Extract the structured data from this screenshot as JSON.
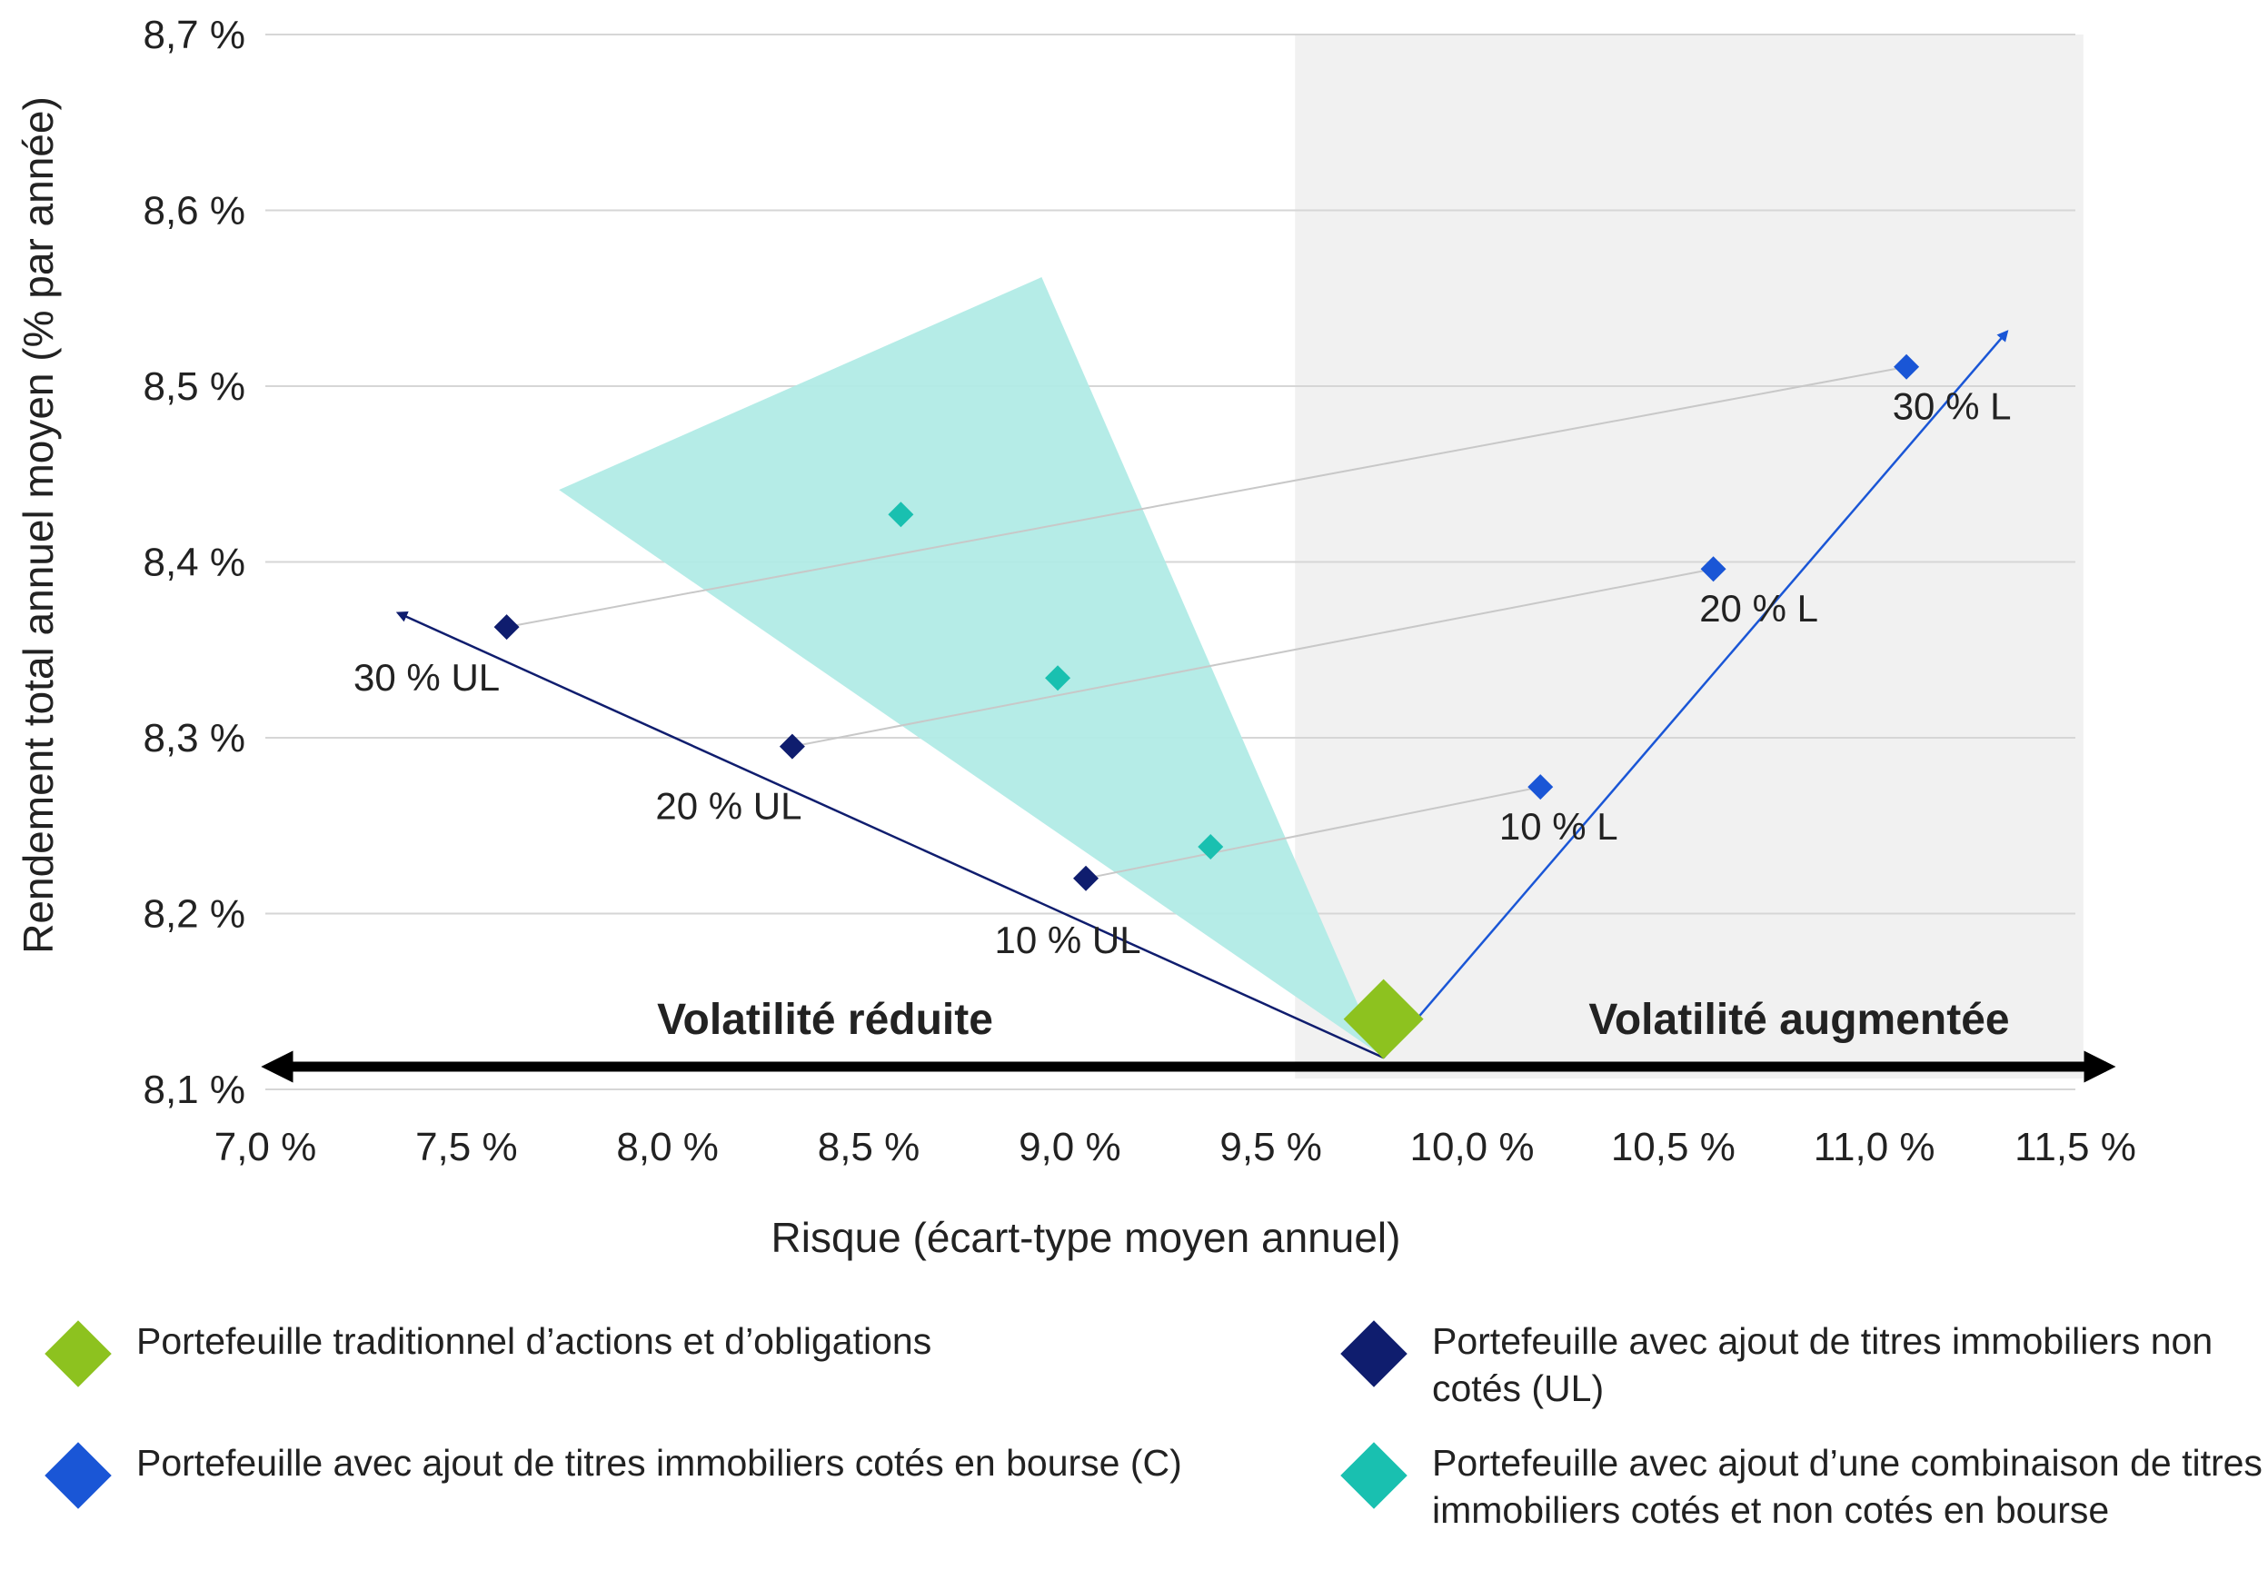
{
  "chart_data": {
    "type": "scatter",
    "xlabel": "Risque (écart-type moyen annuel)",
    "ylabel": "Rendement total annuel moyen (% par année)",
    "xlim": [
      7.0,
      11.5
    ],
    "ylim": [
      8.1,
      8.7
    ],
    "x_ticks": [
      7.0,
      7.5,
      8.0,
      8.5,
      9.0,
      9.5,
      10.0,
      10.5,
      11.0,
      11.5
    ],
    "x_tick_labels": [
      "7,0 %",
      "7,5 %",
      "8,0 %",
      "8,5 %",
      "9,0 %",
      "9,5 %",
      "10,0 %",
      "10,5 %",
      "11,0 %",
      "11,5 %"
    ],
    "y_ticks": [
      8.1,
      8.2,
      8.3,
      8.4,
      8.5,
      8.6,
      8.7
    ],
    "y_tick_labels": [
      "8,1 %",
      "8,2 %",
      "8,3 %",
      "8,4 %",
      "8,5 %",
      "8,6 %",
      "8,7 %"
    ],
    "grid": true,
    "shaded_region": {
      "x_from": 9.56,
      "x_to": 11.52,
      "color": "#f1f1f1"
    },
    "zone_labels": {
      "left": "Volatilité réduite",
      "right": "Volatilité augmentée"
    },
    "series": [
      {
        "name": "Portefeuille traditionnel d’actions et d’obligations",
        "color": "#8dc21f",
        "size": "large",
        "points": [
          {
            "x": 9.78,
            "y": 8.14,
            "label": ""
          }
        ]
      },
      {
        "name": "Portefeuille avec ajout de titres immobiliers non cotés (UL)",
        "color": "#0f1d6e",
        "size": "small",
        "points": [
          {
            "x": 9.04,
            "y": 8.22,
            "label": "10 % UL"
          },
          {
            "x": 8.31,
            "y": 8.295,
            "label": "20 % UL"
          },
          {
            "x": 7.6,
            "y": 8.363,
            "label": "30 % UL"
          }
        ]
      },
      {
        "name": "Portefeuille avec ajout de titres immobiliers cotés en bourse (C)",
        "color": "#1a56d6",
        "size": "small",
        "points": [
          {
            "x": 10.17,
            "y": 8.272,
            "label": "10 % L"
          },
          {
            "x": 10.6,
            "y": 8.396,
            "label": "20 % L"
          },
          {
            "x": 11.08,
            "y": 8.511,
            "label": "30 % L"
          }
        ]
      },
      {
        "name": "Portefeuille avec ajout d’une combinaison de titres immobiliers cotés et non cotés en bourse",
        "color": "#19c0b0",
        "size": "small",
        "points": [
          {
            "x": 9.35,
            "y": 8.238,
            "label": ""
          },
          {
            "x": 8.97,
            "y": 8.334,
            "label": ""
          },
          {
            "x": 8.58,
            "y": 8.427,
            "label": ""
          }
        ]
      }
    ],
    "triangle": {
      "color": "#b1ebe6",
      "vertices": [
        [
          9.77,
          8.12
        ],
        [
          7.73,
          8.441
        ],
        [
          8.93,
          8.562
        ]
      ]
    },
    "connectors": [
      {
        "from": [
          9.04,
          8.22
        ],
        "to": [
          10.17,
          8.272
        ]
      },
      {
        "from": [
          8.31,
          8.295
        ],
        "to": [
          10.6,
          8.396
        ]
      },
      {
        "from": [
          7.6,
          8.363
        ],
        "to": [
          11.08,
          8.511
        ]
      }
    ],
    "arrows": [
      {
        "from": [
          9.78,
          8.118
        ],
        "to": [
          7.33,
          8.371
        ],
        "color": "#0f1d6e"
      },
      {
        "from": [
          9.78,
          8.118
        ],
        "to": [
          11.33,
          8.531
        ],
        "color": "#1a56d6"
      }
    ]
  },
  "legend": {
    "items": [
      {
        "label": "Portefeuille traditionnel d’actions et d’obligations",
        "color": "#8dc21f"
      },
      {
        "label": "Portefeuille avec ajout de titres immobiliers non cotés (UL)",
        "color": "#0f1d6e"
      },
      {
        "label": "Portefeuille avec ajout de titres immobiliers cotés en bourse (C)",
        "color": "#1a56d6"
      },
      {
        "label": "Portefeuille avec ajout d’une combinaison de titres immobiliers cotés et non cotés en bourse",
        "color": "#19c0b0"
      }
    ]
  }
}
